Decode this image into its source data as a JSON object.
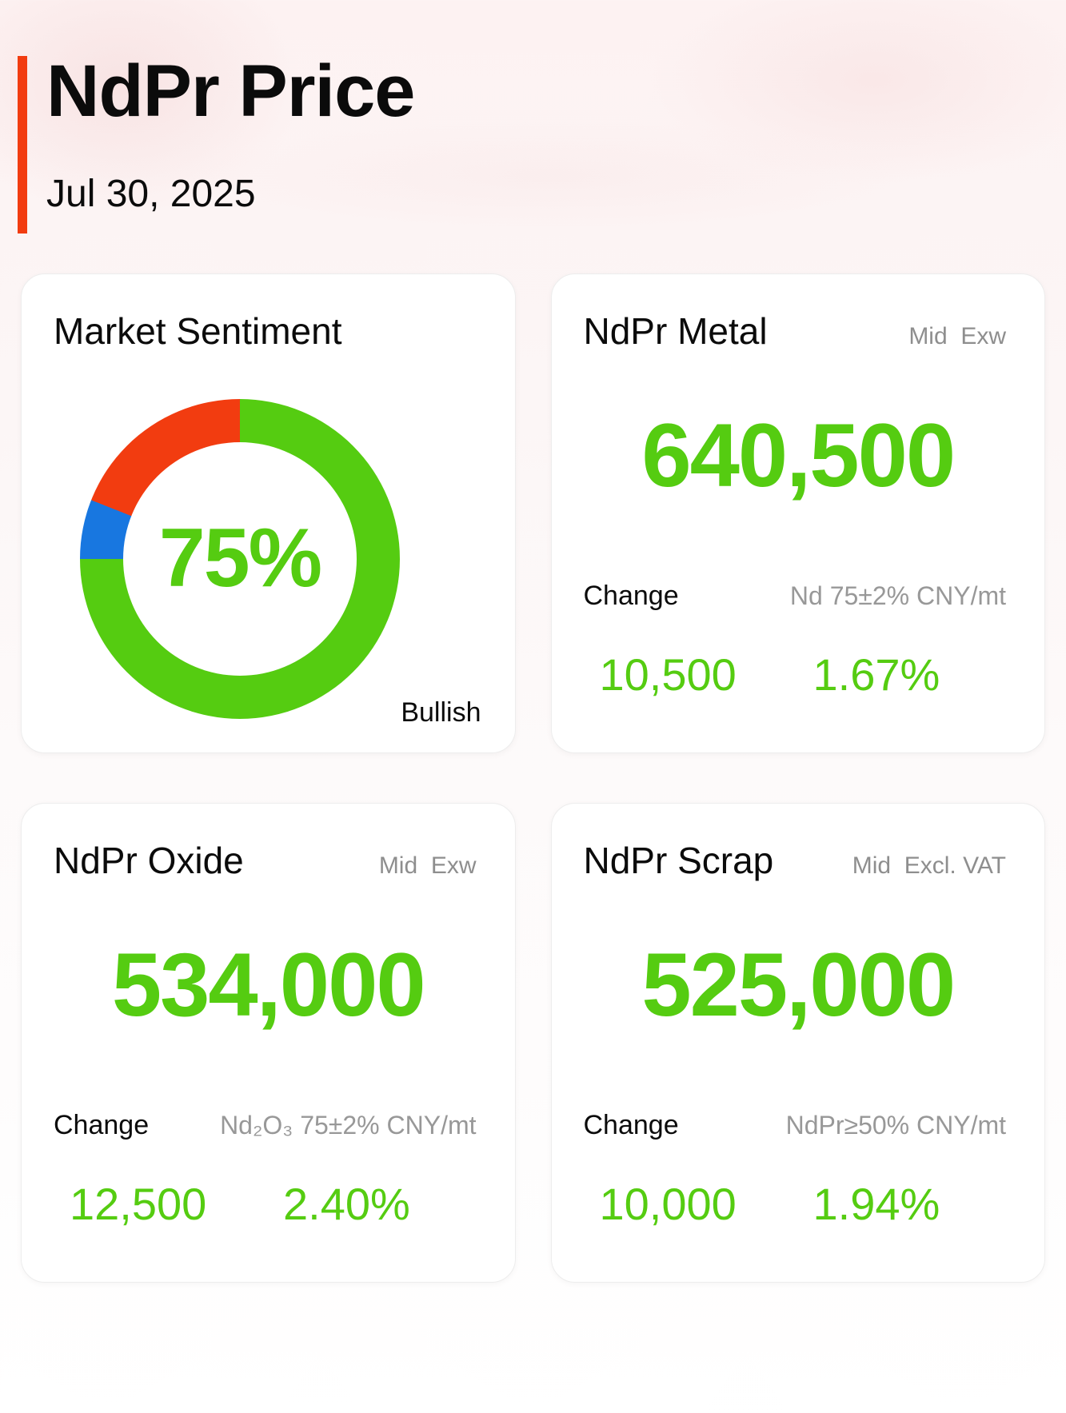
{
  "page": {
    "title": "NdPr Price",
    "date": "Jul 30, 2025"
  },
  "colors": {
    "green": "#55CC11",
    "red": "#F23C10",
    "blue": "#1877E0",
    "accent_bar": "#F23C10",
    "gray_tag": "#8E8E8E",
    "gray_spec": "#989898",
    "text": "#0B0B0B",
    "card_bg": "#FFFFFF"
  },
  "sentiment": {
    "title": "Market Sentiment",
    "center_label": "75%",
    "status_label": "Bullish"
  },
  "chart_data": {
    "type": "pie",
    "donut": true,
    "title": "Market Sentiment",
    "center_label": "75%",
    "segments": [
      {
        "label": "Bullish",
        "value": 75,
        "color": "#55CC11"
      },
      {
        "label": "",
        "value": 6,
        "color": "#1877E0"
      },
      {
        "label": "",
        "value": 19,
        "color": "#F23C10"
      }
    ]
  },
  "cards": [
    {
      "title": "NdPr Metal",
      "tag": "Mid  Exw",
      "value": "640,500",
      "change_label": "Change",
      "spec": "Nd 75±2% CNY/mt",
      "change_value": "10,500",
      "change_percent": "1.67%"
    },
    {
      "title": "NdPr Oxide",
      "tag": "Mid  Exw",
      "value": "534,000",
      "change_label": "Change",
      "spec": "Nd₂O₃ 75±2% CNY/mt",
      "change_value": "12,500",
      "change_percent": "2.40%"
    },
    {
      "title": "NdPr Scrap",
      "tag": "Mid  Excl. VAT",
      "value": "525,000",
      "change_label": "Change",
      "spec": "NdPr≥50% CNY/mt",
      "change_value": "10,000",
      "change_percent": "1.94%"
    }
  ]
}
